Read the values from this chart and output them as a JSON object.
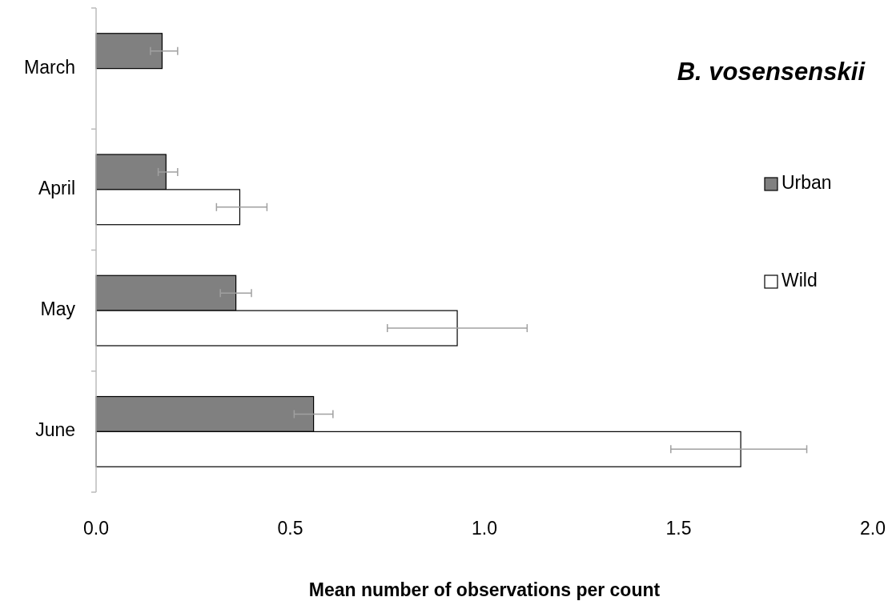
{
  "chart_data": {
    "type": "bar",
    "orientation": "horizontal",
    "title": "B. vosensenskii",
    "xlabel": "Mean number of observations per count",
    "categories": [
      "March",
      "April",
      "May",
      "June"
    ],
    "series": [
      {
        "name": "Urban",
        "color": "#808080",
        "values": [
          0.17,
          0.18,
          0.36,
          0.56
        ],
        "errors": [
          [
            0.14,
            0.21
          ],
          [
            0.16,
            0.21
          ],
          [
            0.32,
            0.4
          ],
          [
            0.51,
            0.61
          ]
        ]
      },
      {
        "name": "Wild",
        "color": "#ffffff",
        "values": [
          null,
          0.37,
          0.93,
          1.66
        ],
        "errors": [
          null,
          [
            0.31,
            0.44
          ],
          [
            0.75,
            1.11
          ],
          [
            1.48,
            1.83
          ]
        ]
      }
    ],
    "xlim": [
      0,
      2
    ],
    "xticks": [
      {
        "value": 0,
        "label": "0.0"
      },
      {
        "value": 0.5,
        "label": "0.5"
      },
      {
        "value": 1,
        "label": "1.0"
      },
      {
        "value": 1.5,
        "label": "1.5"
      },
      {
        "value": 2,
        "label": "2.0"
      }
    ],
    "grid": false,
    "legend": "right"
  }
}
